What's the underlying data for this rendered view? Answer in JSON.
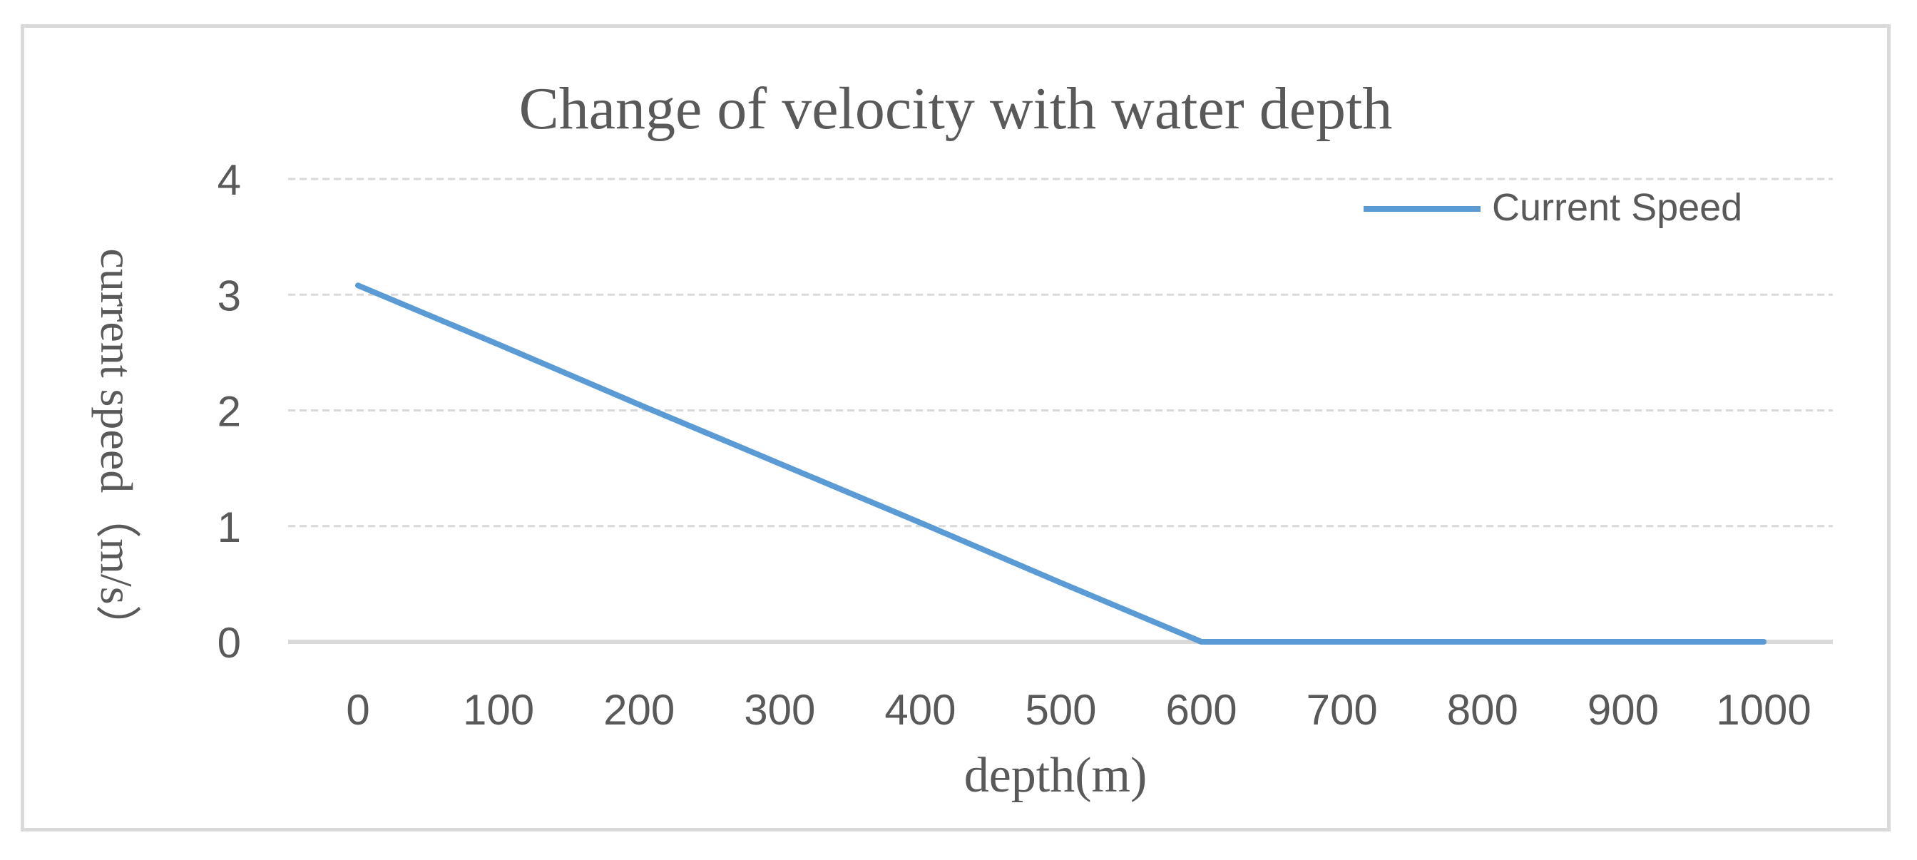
{
  "chart_data": {
    "type": "line",
    "title": "Change of velocity with water depth",
    "xlabel": "depth(m)",
    "ylabel": "current speed（m/s）",
    "categories": [
      "0",
      "100",
      "200",
      "300",
      "400",
      "500",
      "600",
      "700",
      "800",
      "900",
      "1000"
    ],
    "series": [
      {
        "name": "Current Speed",
        "values": [
          3.08,
          2.57,
          2.05,
          1.54,
          1.03,
          0.51,
          0,
          0,
          0,
          0,
          0
        ]
      }
    ],
    "ylim": [
      0,
      4
    ],
    "yticks": [
      "0",
      "1",
      "2",
      "3",
      "4"
    ],
    "grid": true,
    "legend_position": "top-right",
    "colors": {
      "series": "#5b9bd5",
      "grid": "#d9d9d9",
      "baseline": "#d9d9d9",
      "text": "#595959",
      "frame": "#d9d9d9"
    }
  }
}
